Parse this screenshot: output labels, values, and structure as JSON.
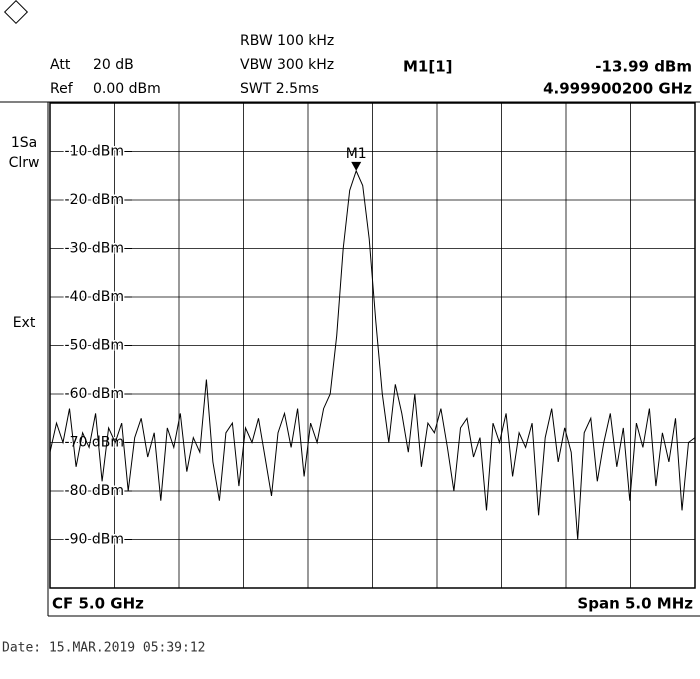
{
  "chart_data": {
    "type": "line",
    "header": {
      "att_label": "Att",
      "att": "20 dB",
      "ref_label": "Ref",
      "ref": "0.00 dBm",
      "rbw": "RBW 100 kHz",
      "vbw": "VBW 300 kHz",
      "swt": "SWT 2.5ms",
      "marker_name": "M1[1]",
      "marker_level": "-13.99 dBm",
      "marker_freq": "4.999900200 GHz"
    },
    "side": {
      "trace": "1Sa",
      "mode": "Clrw",
      "trigger": "Ext"
    },
    "marker_label": "M1",
    "center": "CF 5.0 GHz",
    "span": "Span 5.0 MHz",
    "date": "Date: 15.MAR.2019  05:39:12",
    "ylim": [
      -100,
      0
    ],
    "yticks": [
      {
        "value": -10,
        "label": "-10 dBm"
      },
      {
        "value": -20,
        "label": "-20 dBm"
      },
      {
        "value": -30,
        "label": "-30 dBm"
      },
      {
        "value": -40,
        "label": "-40 dBm"
      },
      {
        "value": -50,
        "label": "-50 dBm"
      },
      {
        "value": -60,
        "label": "-60 dBm"
      },
      {
        "value": -70,
        "label": "-70 dBm"
      },
      {
        "value": -80,
        "label": "-80 dBm"
      },
      {
        "value": -90,
        "label": "-90 dBm"
      }
    ],
    "grid": true,
    "series": [
      {
        "color": "#000000",
        "values": [
          -72,
          -66,
          -70,
          -63,
          -75,
          -68,
          -71,
          -64,
          -78,
          -67,
          -70,
          -66,
          -80,
          -69,
          -65,
          -73,
          -68,
          -82,
          -67,
          -71,
          -64,
          -76,
          -69,
          -72,
          -57,
          -74,
          -82,
          -68,
          -66,
          -79,
          -67,
          -70,
          -65,
          -73,
          -81,
          -68,
          -64,
          -71,
          -63,
          -77,
          -66,
          -70,
          -63,
          -60,
          -48,
          -30,
          -18,
          -13.99,
          -17,
          -28,
          -45,
          -60,
          -70,
          -58,
          -64,
          -72,
          -60,
          -75,
          -66,
          -68,
          -63,
          -71,
          -80,
          -67,
          -65,
          -73,
          -69,
          -84,
          -66,
          -70,
          -64,
          -77,
          -68,
          -71,
          -66,
          -85,
          -69,
          -63,
          -74,
          -67,
          -72,
          -90,
          -68,
          -65,
          -78,
          -70,
          -64,
          -75,
          -67,
          -82,
          -66,
          -71,
          -63,
          -79,
          -68,
          -74,
          -65,
          -84,
          -70,
          -69
        ]
      }
    ]
  }
}
